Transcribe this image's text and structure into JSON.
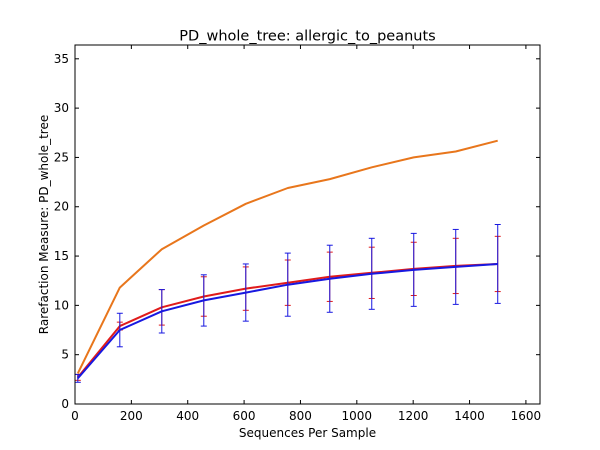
{
  "chart_data": {
    "type": "line",
    "title": "PD_whole_tree: allergic_to_peanuts",
    "xlabel": "Sequences Per Sample",
    "ylabel": "Rarefaction Measure: PD_whole_tree",
    "xlim": [
      0,
      1650
    ],
    "ylim": [
      0,
      36.4
    ],
    "xticks": [
      0,
      200,
      400,
      600,
      800,
      1000,
      1200,
      1400,
      1600
    ],
    "yticks": [
      0,
      5,
      10,
      15,
      20,
      25,
      30,
      35
    ],
    "grid": false,
    "legend": "none",
    "x": [
      10,
      159,
      308,
      457,
      606,
      755,
      904,
      1053,
      1202,
      1351,
      1500
    ],
    "series": [
      {
        "color": "#e8761c",
        "values": [
          3.1,
          11.8,
          15.7,
          18.1,
          20.3,
          21.9,
          22.8,
          24.0,
          25.0,
          25.6,
          26.7
        ],
        "errors": null
      },
      {
        "color": "#e01b1b",
        "values": [
          2.7,
          7.9,
          9.8,
          10.9,
          11.7,
          12.3,
          12.9,
          13.3,
          13.7,
          14.0,
          14.2
        ],
        "errors": [
          0.3,
          0.4,
          1.8,
          2.0,
          2.2,
          2.3,
          2.5,
          2.6,
          2.7,
          2.8,
          2.8
        ]
      },
      {
        "color": "#1818e0",
        "values": [
          2.6,
          7.5,
          9.4,
          10.5,
          11.3,
          12.1,
          12.7,
          13.2,
          13.6,
          13.9,
          14.2
        ],
        "errors": [
          0.4,
          1.7,
          2.2,
          2.6,
          2.9,
          3.2,
          3.4,
          3.6,
          3.7,
          3.8,
          4.0
        ]
      }
    ]
  }
}
